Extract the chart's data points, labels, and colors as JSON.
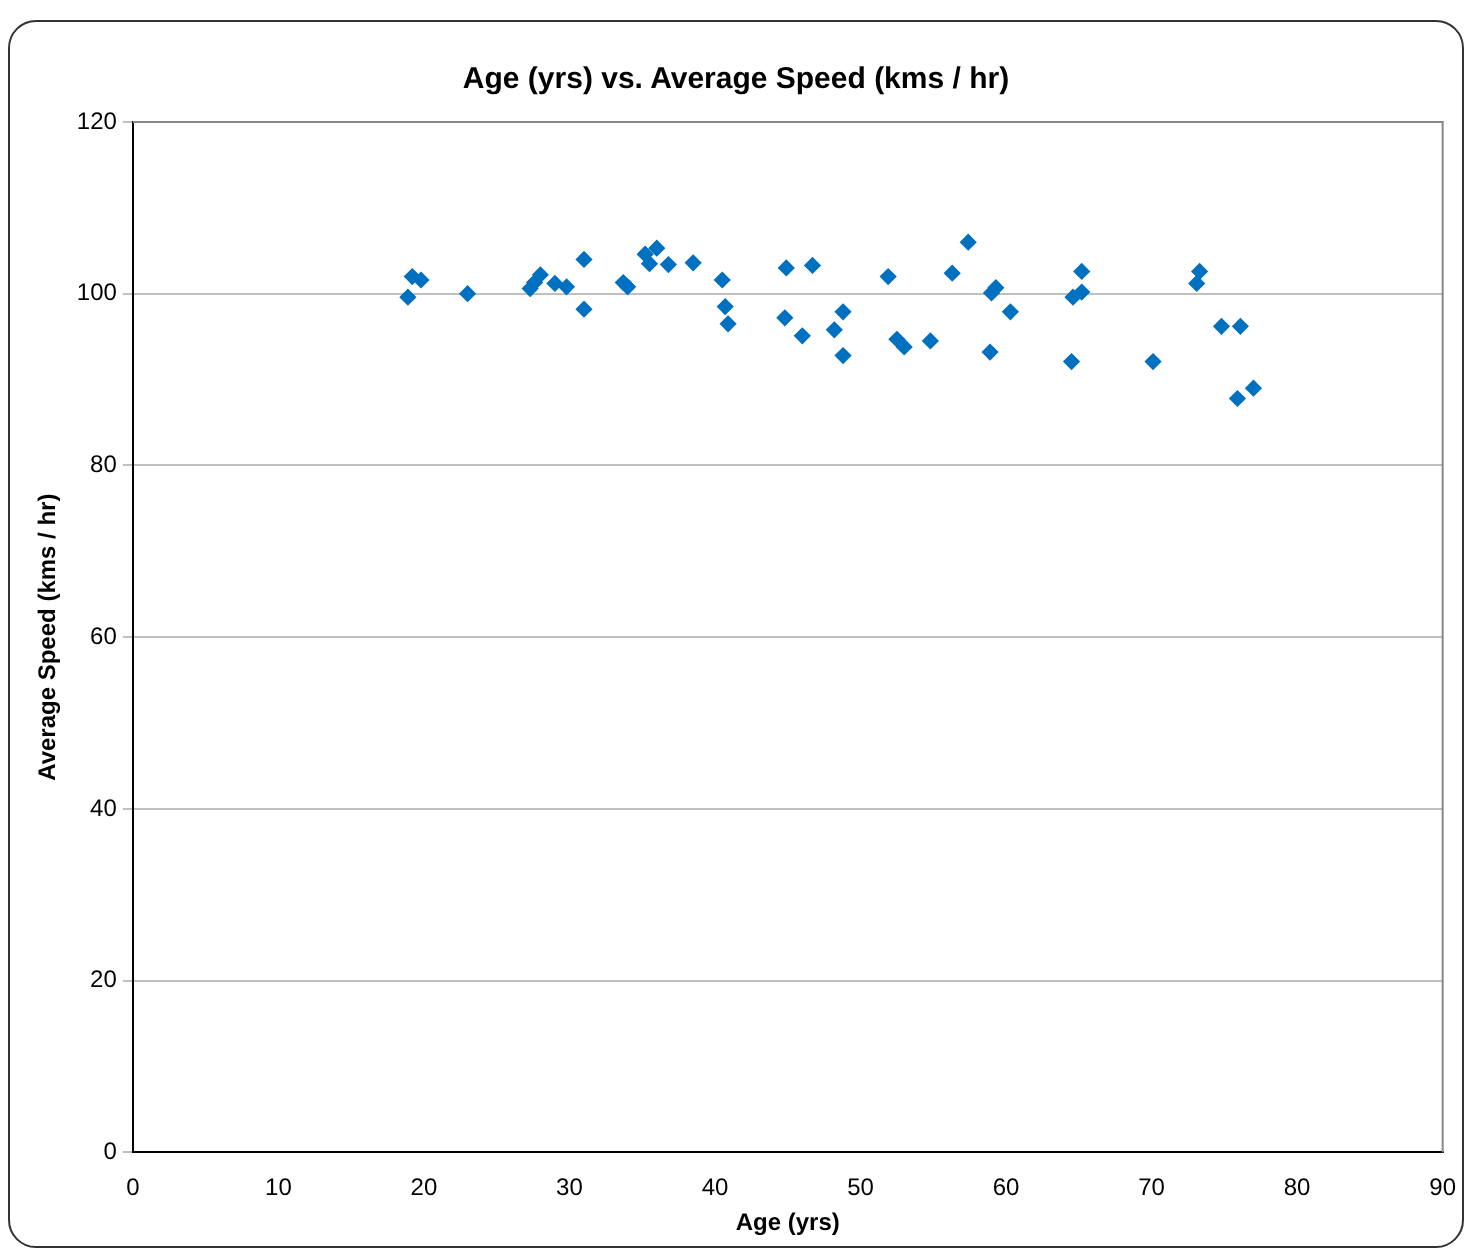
{
  "chart_data": {
    "type": "scatter",
    "title": "Age (yrs) vs. Average Speed (kms / hr)",
    "xlabel": "Age (yrs)",
    "ylabel": "Average Speed (kms / hr)",
    "x": [
      18.9,
      19.2,
      19.8,
      23,
      27.3,
      27.6,
      28,
      29,
      29.8,
      31,
      31,
      33.7,
      34,
      35.2,
      35.5,
      36,
      36.8,
      38.5,
      40.5,
      40.7,
      40.9,
      44.8,
      44.9,
      46,
      46.7,
      48.2,
      48.8,
      48.8,
      51.9,
      52.5,
      53,
      54.8,
      56.3,
      57.4,
      59,
      59.3,
      58.9,
      60.3,
      64.5,
      64.6,
      65.2,
      65.2,
      70.1,
      73.1,
      73.3,
      74.8,
      75.9,
      76.1,
      77
    ],
    "values": [
      99.6,
      102,
      101.6,
      100,
      100.6,
      101.3,
      102.2,
      101.2,
      100.8,
      104,
      98.2,
      101.3,
      100.8,
      104.6,
      103.5,
      105.3,
      103.4,
      103.6,
      101.6,
      98.5,
      96.5,
      97.2,
      103,
      95.1,
      103.3,
      95.8,
      97.9,
      92.8,
      102,
      94.7,
      93.8,
      94.5,
      102.4,
      106,
      100.1,
      100.7,
      93.2,
      97.9,
      92.1,
      99.6,
      100.2,
      102.6,
      92.1,
      101.2,
      102.6,
      96.2,
      87.8,
      96.2,
      89
    ],
    "color": "#0070c0",
    "marker": "diamond",
    "xlim": [
      0,
      90
    ],
    "xticks": [
      0,
      10,
      20,
      30,
      40,
      50,
      60,
      70,
      80,
      90
    ],
    "ylim": [
      0,
      120
    ],
    "yticks": [
      0,
      20,
      40,
      60,
      80,
      100,
      120
    ],
    "grid": "y",
    "legend": false
  }
}
